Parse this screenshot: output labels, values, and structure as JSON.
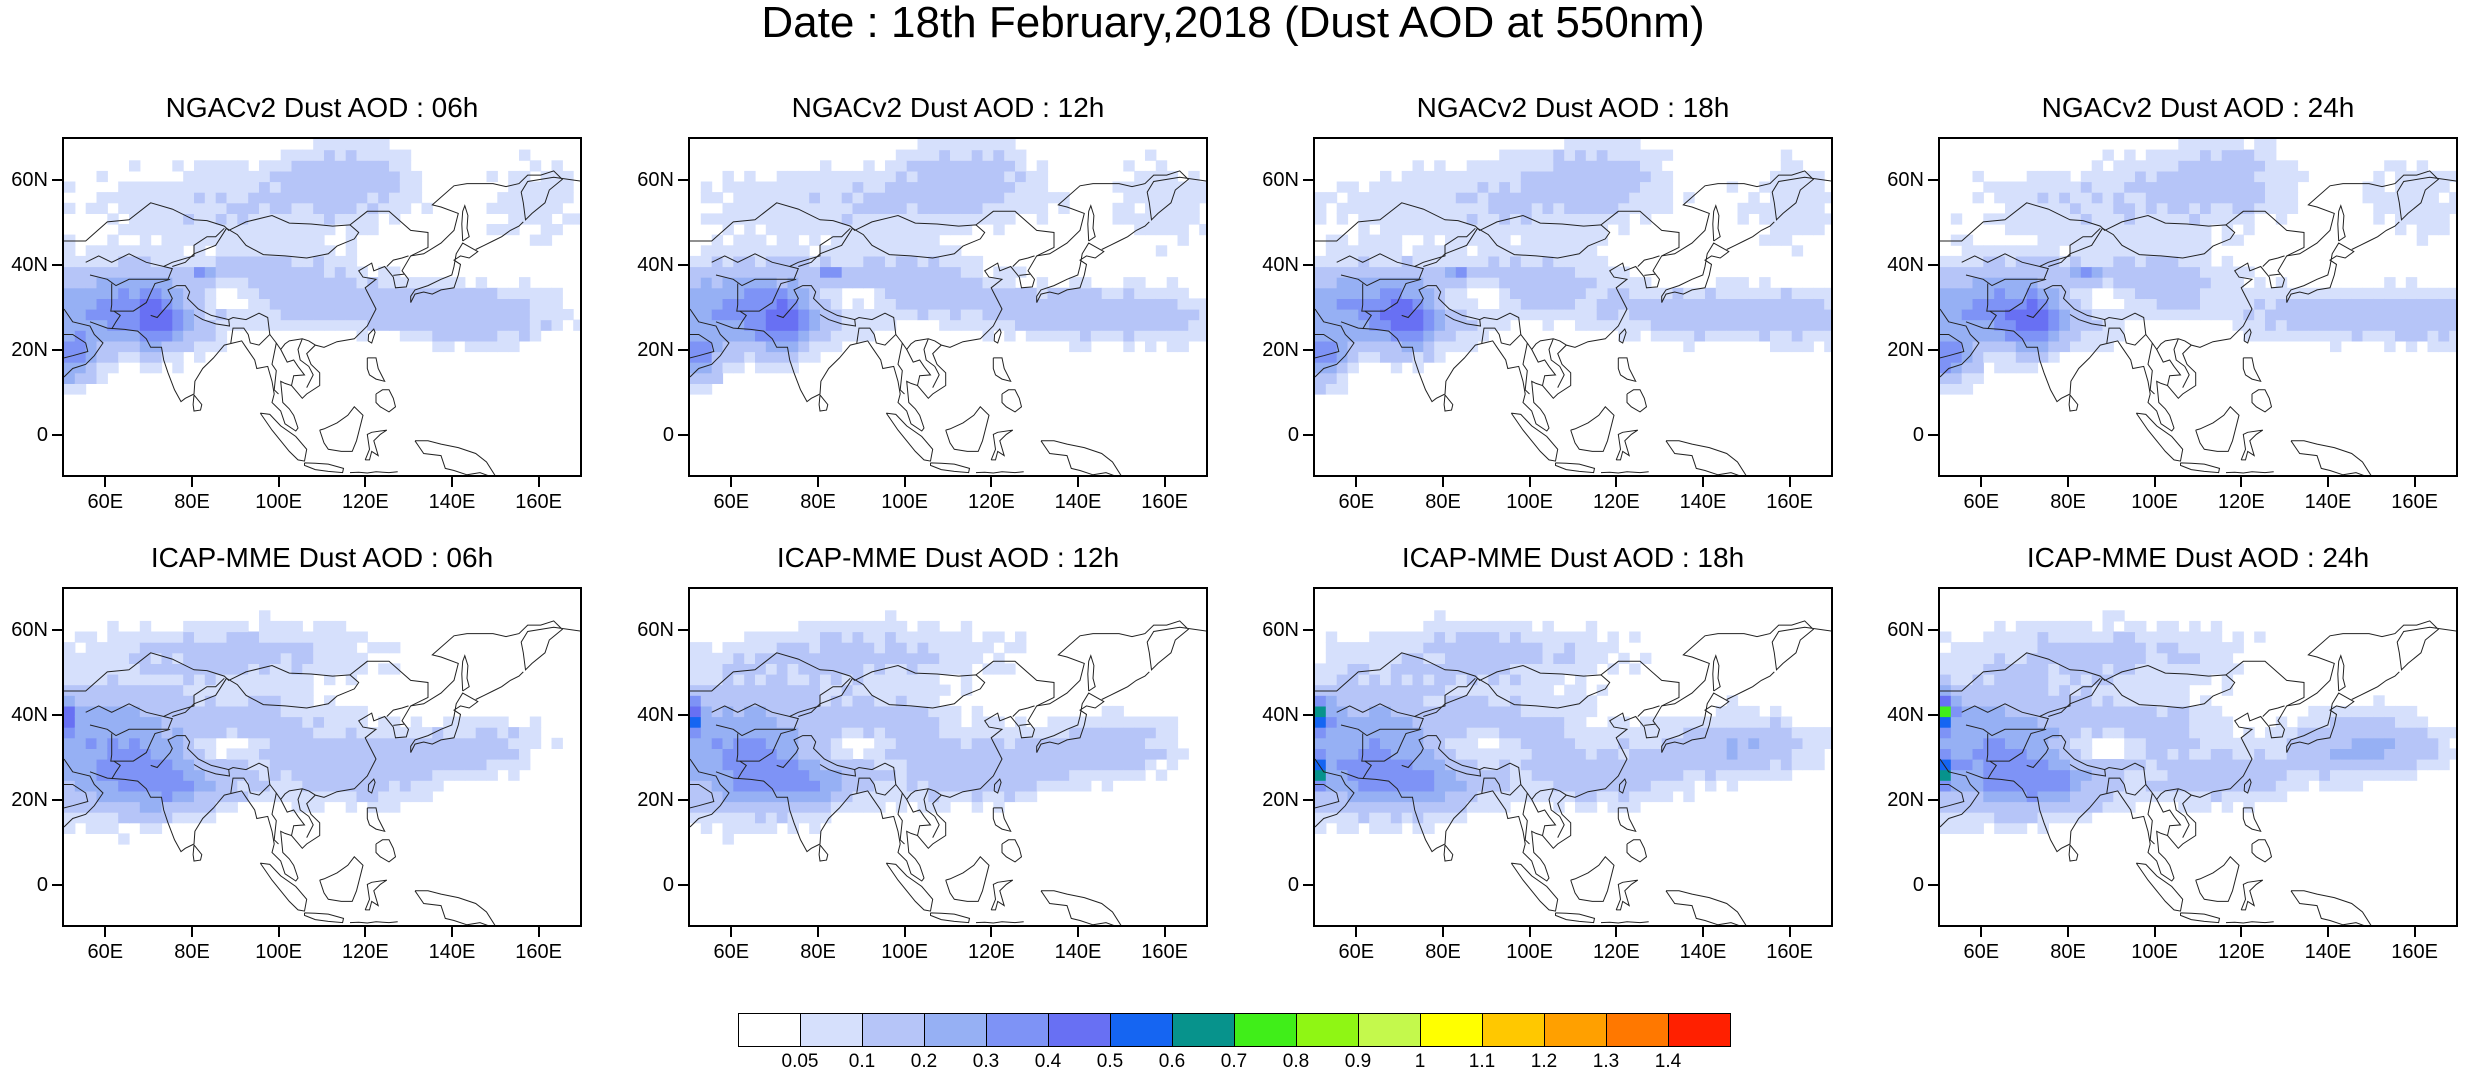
{
  "title": "Date : 18th February,2018 (Dust AOD at 550nm)",
  "panels": [
    {
      "title": "NGACv2 Dust AOD : 06h",
      "model": "ngac",
      "variant": 0
    },
    {
      "title": "NGACv2 Dust AOD : 12h",
      "model": "ngac",
      "variant": 1
    },
    {
      "title": "NGACv2 Dust AOD : 18h",
      "model": "ngac",
      "variant": 2
    },
    {
      "title": "NGACv2 Dust AOD : 24h",
      "model": "ngac",
      "variant": 3
    },
    {
      "title": "ICAP-MME Dust AOD : 06h",
      "model": "icap",
      "variant": 0
    },
    {
      "title": "ICAP-MME Dust AOD : 12h",
      "model": "icap",
      "variant": 1
    },
    {
      "title": "ICAP-MME Dust AOD : 18h",
      "model": "icap",
      "variant": 2
    },
    {
      "title": "ICAP-MME Dust AOD : 24h",
      "model": "icap",
      "variant": 3
    }
  ],
  "axes": {
    "lon_range": [
      50,
      170
    ],
    "lat_range": [
      -10,
      70
    ],
    "lon_ticks": [
      60,
      80,
      100,
      120,
      140,
      160
    ],
    "lon_tick_labels": [
      "60E",
      "80E",
      "100E",
      "120E",
      "140E",
      "160E"
    ],
    "lat_ticks": [
      60,
      40,
      20,
      0
    ],
    "lat_tick_labels": [
      "60N",
      "40N",
      "20N",
      "0"
    ]
  },
  "colorbar": {
    "colors": [
      "#ffffff",
      "#d6e0fc",
      "#b6c5f8",
      "#96b0f4",
      "#7e93f6",
      "#6870f3",
      "#1565f2",
      "#07938c",
      "#40ee19",
      "#8ff614",
      "#c4f94c",
      "#ffff00",
      "#ffc800",
      "#ffa000",
      "#ff7800",
      "#ff2000"
    ],
    "labels": [
      "0.05",
      "0.1",
      "0.2",
      "0.3",
      "0.4",
      "0.5",
      "0.6",
      "0.7",
      "0.8",
      "0.9",
      "1",
      "1.1",
      "1.2",
      "1.3",
      "1.4"
    ]
  }
}
